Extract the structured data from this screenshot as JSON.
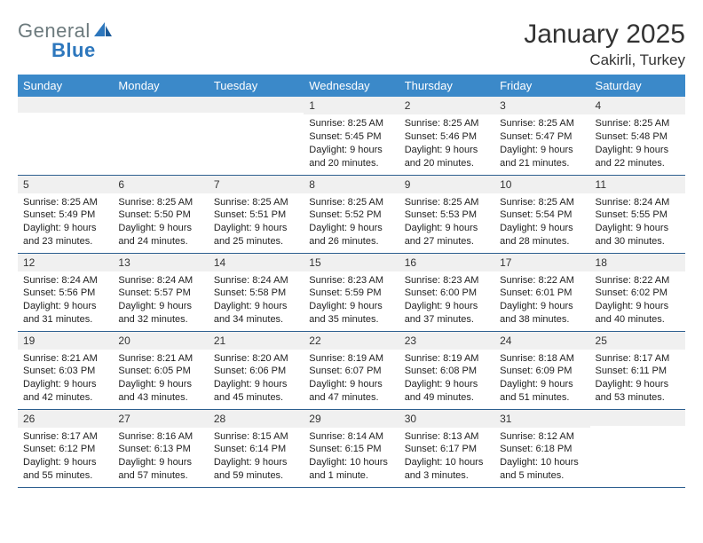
{
  "logo": {
    "text1": "General",
    "text2": "Blue"
  },
  "header": {
    "title": "January 2025",
    "location": "Cakirli, Turkey"
  },
  "colors": {
    "header_bg": "#3b89c9",
    "header_fg": "#ffffff",
    "daynum_bg": "#f0f0f0",
    "border": "#2d5f8f",
    "logo_gray": "#6c7a7d",
    "logo_blue": "#2d77bd"
  },
  "day_headers": [
    "Sunday",
    "Monday",
    "Tuesday",
    "Wednesday",
    "Thursday",
    "Friday",
    "Saturday"
  ],
  "weeks": [
    [
      {
        "n": "",
        "t": ""
      },
      {
        "n": "",
        "t": ""
      },
      {
        "n": "",
        "t": ""
      },
      {
        "n": "1",
        "t": "Sunrise: 8:25 AM\nSunset: 5:45 PM\nDaylight: 9 hours and 20 minutes."
      },
      {
        "n": "2",
        "t": "Sunrise: 8:25 AM\nSunset: 5:46 PM\nDaylight: 9 hours and 20 minutes."
      },
      {
        "n": "3",
        "t": "Sunrise: 8:25 AM\nSunset: 5:47 PM\nDaylight: 9 hours and 21 minutes."
      },
      {
        "n": "4",
        "t": "Sunrise: 8:25 AM\nSunset: 5:48 PM\nDaylight: 9 hours and 22 minutes."
      }
    ],
    [
      {
        "n": "5",
        "t": "Sunrise: 8:25 AM\nSunset: 5:49 PM\nDaylight: 9 hours and 23 minutes."
      },
      {
        "n": "6",
        "t": "Sunrise: 8:25 AM\nSunset: 5:50 PM\nDaylight: 9 hours and 24 minutes."
      },
      {
        "n": "7",
        "t": "Sunrise: 8:25 AM\nSunset: 5:51 PM\nDaylight: 9 hours and 25 minutes."
      },
      {
        "n": "8",
        "t": "Sunrise: 8:25 AM\nSunset: 5:52 PM\nDaylight: 9 hours and 26 minutes."
      },
      {
        "n": "9",
        "t": "Sunrise: 8:25 AM\nSunset: 5:53 PM\nDaylight: 9 hours and 27 minutes."
      },
      {
        "n": "10",
        "t": "Sunrise: 8:25 AM\nSunset: 5:54 PM\nDaylight: 9 hours and 28 minutes."
      },
      {
        "n": "11",
        "t": "Sunrise: 8:24 AM\nSunset: 5:55 PM\nDaylight: 9 hours and 30 minutes."
      }
    ],
    [
      {
        "n": "12",
        "t": "Sunrise: 8:24 AM\nSunset: 5:56 PM\nDaylight: 9 hours and 31 minutes."
      },
      {
        "n": "13",
        "t": "Sunrise: 8:24 AM\nSunset: 5:57 PM\nDaylight: 9 hours and 32 minutes."
      },
      {
        "n": "14",
        "t": "Sunrise: 8:24 AM\nSunset: 5:58 PM\nDaylight: 9 hours and 34 minutes."
      },
      {
        "n": "15",
        "t": "Sunrise: 8:23 AM\nSunset: 5:59 PM\nDaylight: 9 hours and 35 minutes."
      },
      {
        "n": "16",
        "t": "Sunrise: 8:23 AM\nSunset: 6:00 PM\nDaylight: 9 hours and 37 minutes."
      },
      {
        "n": "17",
        "t": "Sunrise: 8:22 AM\nSunset: 6:01 PM\nDaylight: 9 hours and 38 minutes."
      },
      {
        "n": "18",
        "t": "Sunrise: 8:22 AM\nSunset: 6:02 PM\nDaylight: 9 hours and 40 minutes."
      }
    ],
    [
      {
        "n": "19",
        "t": "Sunrise: 8:21 AM\nSunset: 6:03 PM\nDaylight: 9 hours and 42 minutes."
      },
      {
        "n": "20",
        "t": "Sunrise: 8:21 AM\nSunset: 6:05 PM\nDaylight: 9 hours and 43 minutes."
      },
      {
        "n": "21",
        "t": "Sunrise: 8:20 AM\nSunset: 6:06 PM\nDaylight: 9 hours and 45 minutes."
      },
      {
        "n": "22",
        "t": "Sunrise: 8:19 AM\nSunset: 6:07 PM\nDaylight: 9 hours and 47 minutes."
      },
      {
        "n": "23",
        "t": "Sunrise: 8:19 AM\nSunset: 6:08 PM\nDaylight: 9 hours and 49 minutes."
      },
      {
        "n": "24",
        "t": "Sunrise: 8:18 AM\nSunset: 6:09 PM\nDaylight: 9 hours and 51 minutes."
      },
      {
        "n": "25",
        "t": "Sunrise: 8:17 AM\nSunset: 6:11 PM\nDaylight: 9 hours and 53 minutes."
      }
    ],
    [
      {
        "n": "26",
        "t": "Sunrise: 8:17 AM\nSunset: 6:12 PM\nDaylight: 9 hours and 55 minutes."
      },
      {
        "n": "27",
        "t": "Sunrise: 8:16 AM\nSunset: 6:13 PM\nDaylight: 9 hours and 57 minutes."
      },
      {
        "n": "28",
        "t": "Sunrise: 8:15 AM\nSunset: 6:14 PM\nDaylight: 9 hours and 59 minutes."
      },
      {
        "n": "29",
        "t": "Sunrise: 8:14 AM\nSunset: 6:15 PM\nDaylight: 10 hours and 1 minute."
      },
      {
        "n": "30",
        "t": "Sunrise: 8:13 AM\nSunset: 6:17 PM\nDaylight: 10 hours and 3 minutes."
      },
      {
        "n": "31",
        "t": "Sunrise: 8:12 AM\nSunset: 6:18 PM\nDaylight: 10 hours and 5 minutes."
      },
      {
        "n": "",
        "t": ""
      }
    ]
  ]
}
